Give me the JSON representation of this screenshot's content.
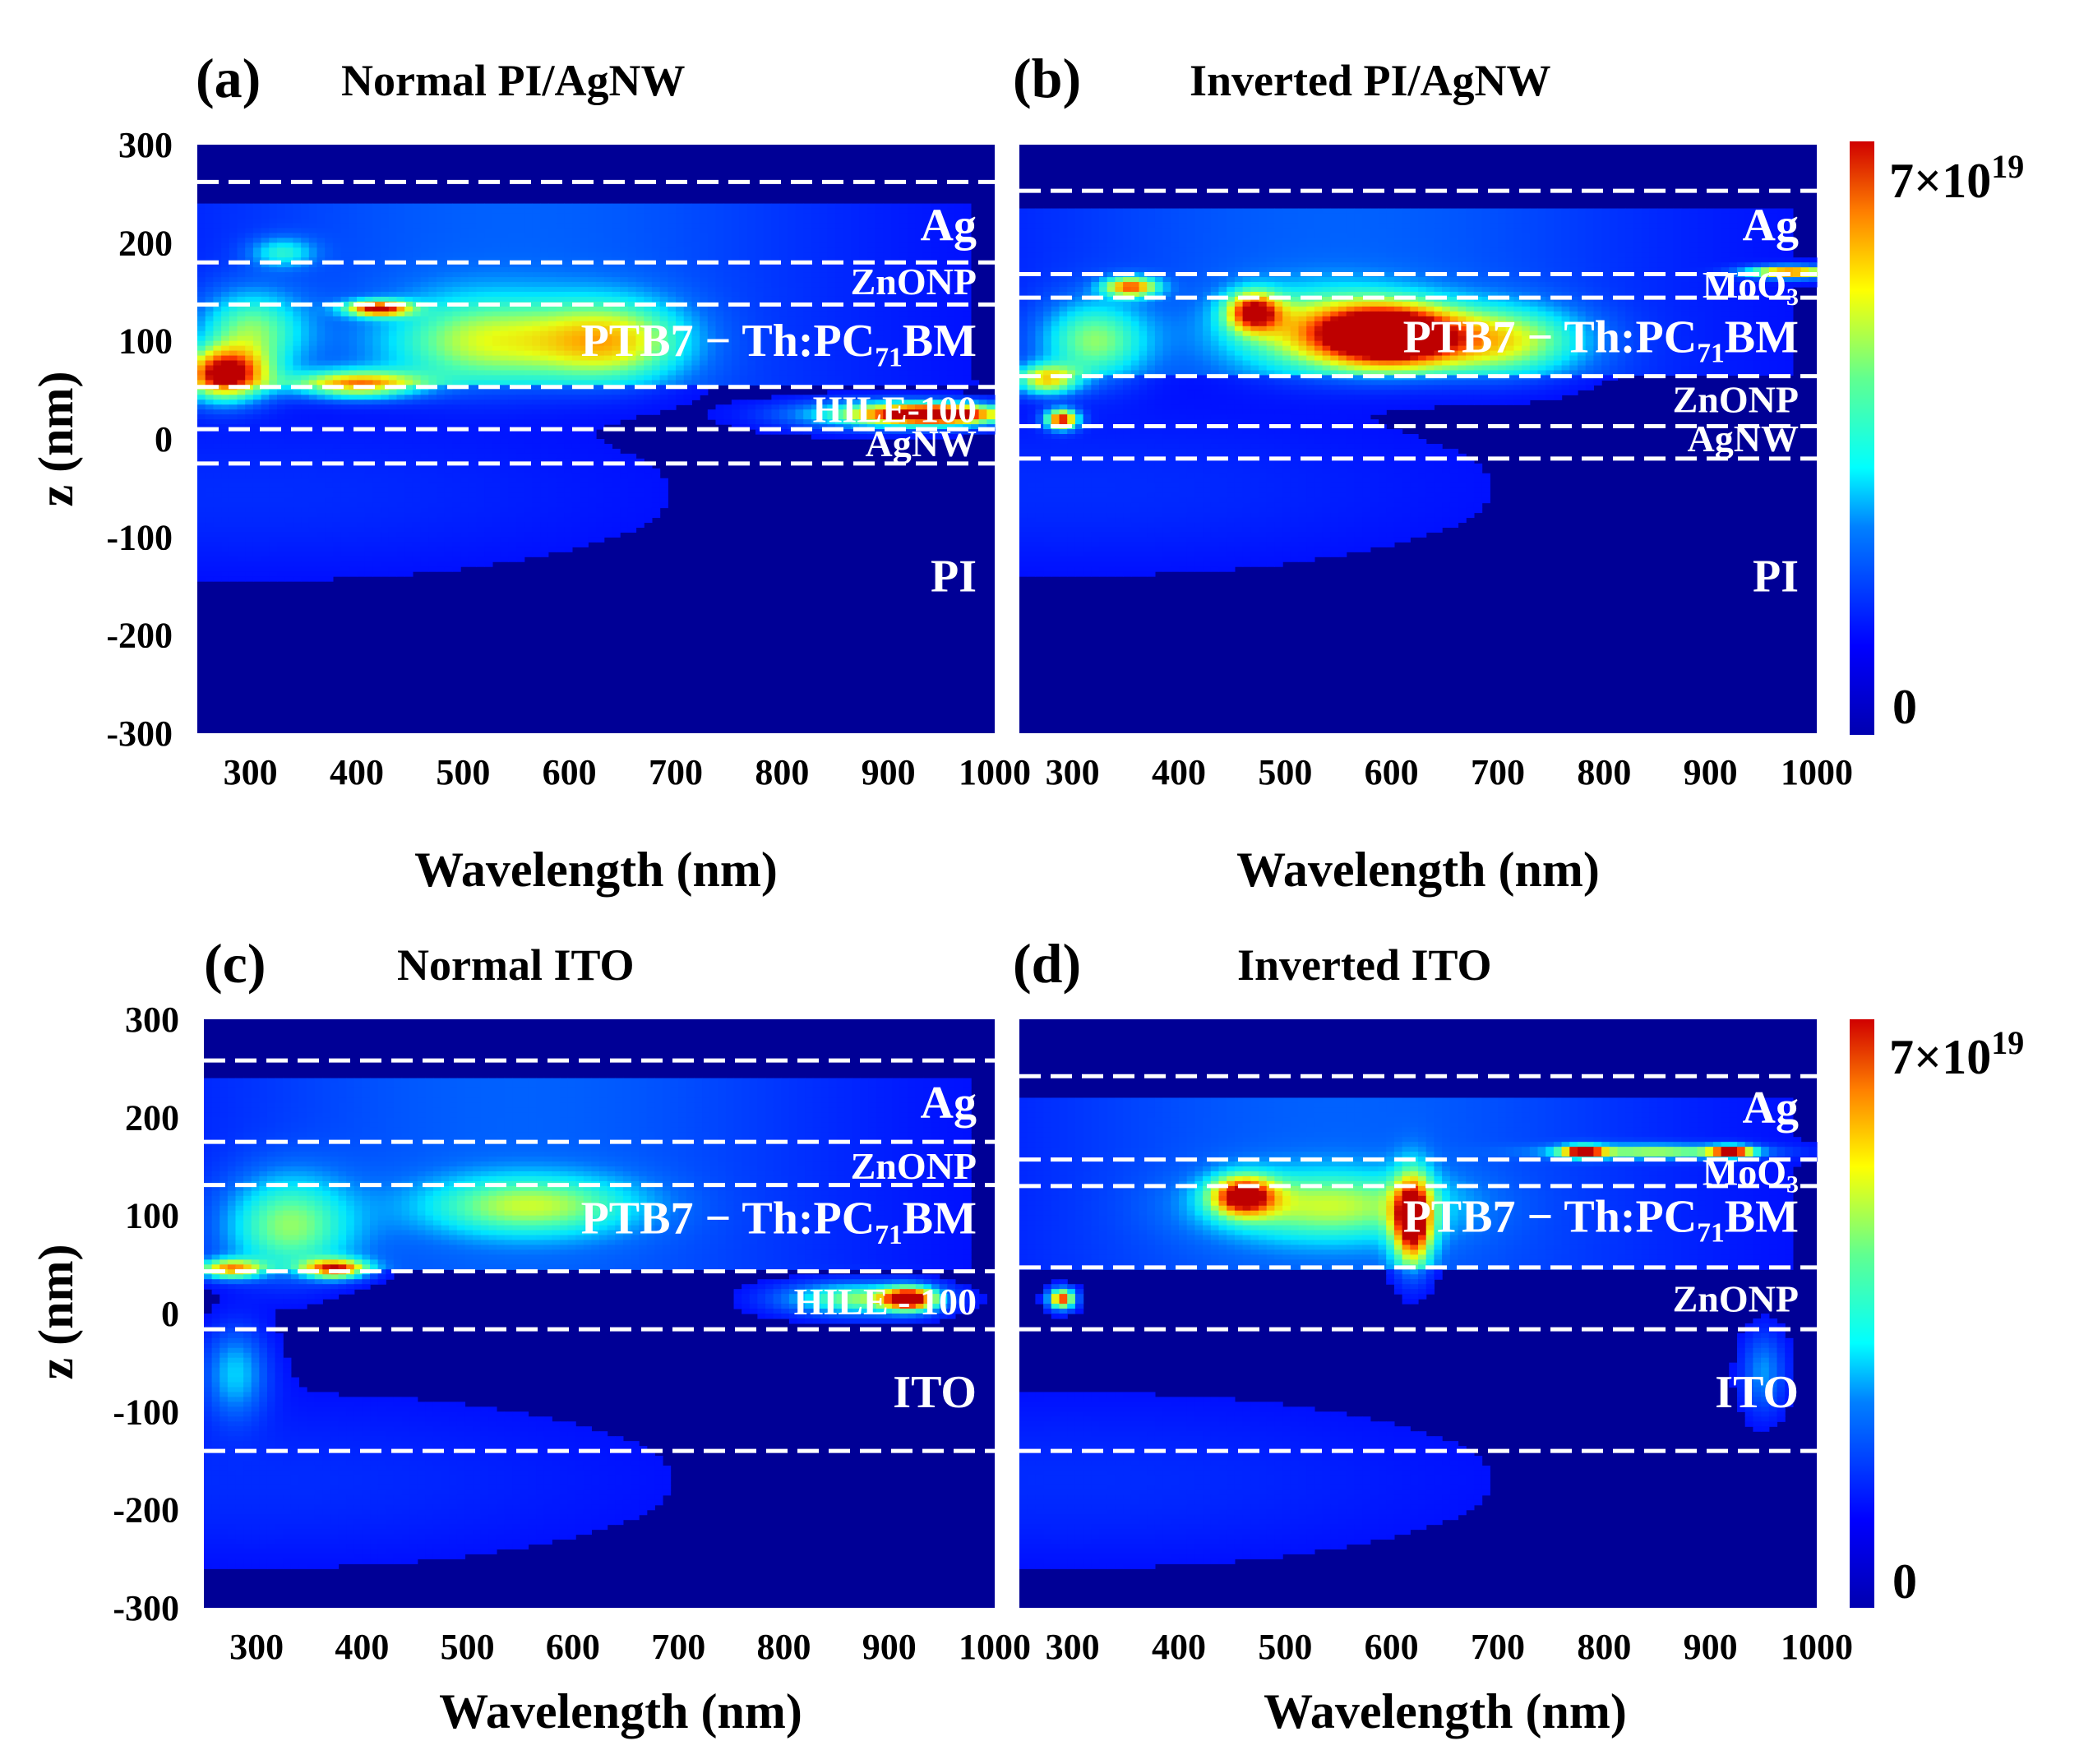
{
  "chart_data": [
    {
      "type": "heatmap",
      "panel_label": "(a)",
      "title": "Normal PI/AgNW",
      "xlabel": "Wavelength (nm)",
      "ylabel": "z (nm)",
      "xlim": [
        250,
        1000
      ],
      "ylim": [
        -300,
        300
      ],
      "xticks": [
        "300",
        "400",
        "500",
        "600",
        "700",
        "800",
        "900",
        "1000"
      ],
      "yticks": [
        "300",
        "200",
        "100",
        "0",
        "-100",
        "-200",
        "-300"
      ],
      "interfaces_nm": [
        262,
        180,
        137,
        53,
        10,
        -25
      ],
      "layers": [
        {
          "name": "Ag",
          "z": 218
        },
        {
          "name": "ZnONP",
          "z": 160
        },
        {
          "name": "PTB7 − Th:PC71BM",
          "z": 100
        },
        {
          "name": "HILE-100",
          "z": 30
        },
        {
          "name": "AgNW",
          "z": -5
        },
        {
          "name": "PI",
          "z": -140
        }
      ],
      "hotspots": [
        {
          "x": 275,
          "z": 65,
          "wx": 40,
          "wz": 26,
          "i": 0.95
        },
        {
          "x": 300,
          "z": 110,
          "wx": 50,
          "wz": 40,
          "i": 0.45
        },
        {
          "x": 420,
          "z": 133,
          "wx": 30,
          "wz": 8,
          "i": 0.85
        },
        {
          "x": 400,
          "z": 55,
          "wx": 60,
          "wz": 14,
          "i": 0.7
        },
        {
          "x": 520,
          "z": 100,
          "wx": 90,
          "wz": 45,
          "i": 0.45
        },
        {
          "x": 640,
          "z": 100,
          "wx": 70,
          "wz": 40,
          "i": 0.55
        },
        {
          "x": 950,
          "z": 25,
          "wx": 60,
          "wz": 10,
          "i": 0.95
        },
        {
          "x": 900,
          "z": 25,
          "wx": 90,
          "wz": 14,
          "i": 0.55
        },
        {
          "x": 330,
          "z": 190,
          "wx": 30,
          "wz": 15,
          "i": 0.3
        }
      ]
    },
    {
      "type": "heatmap",
      "panel_label": "(b)",
      "title": "Inverted PI/AgNW",
      "xlabel": "Wavelength (nm)",
      "ylabel": "",
      "xlim": [
        250,
        1000
      ],
      "ylim": [
        -300,
        300
      ],
      "xticks": [
        "300",
        "400",
        "500",
        "600",
        "700",
        "800",
        "900",
        "1000"
      ],
      "interfaces_nm": [
        253,
        168,
        144,
        64,
        13,
        -20
      ],
      "layers": [
        {
          "name": "Ag",
          "z": 218
        },
        {
          "name": "MoO3",
          "z": 157
        },
        {
          "name": "PTB7 − Th:PC71BM",
          "z": 104
        },
        {
          "name": "ZnONP",
          "z": 40
        },
        {
          "name": "AgNW",
          "z": 0
        },
        {
          "name": "PI",
          "z": -140
        }
      ],
      "hotspots": [
        {
          "x": 600,
          "z": 105,
          "wx": 60,
          "wz": 30,
          "i": 0.95
        },
        {
          "x": 540,
          "z": 110,
          "wx": 90,
          "wz": 40,
          "i": 0.55
        },
        {
          "x": 700,
          "z": 100,
          "wx": 80,
          "wz": 35,
          "i": 0.55
        },
        {
          "x": 470,
          "z": 130,
          "wx": 25,
          "wz": 20,
          "i": 0.75
        },
        {
          "x": 355,
          "z": 155,
          "wx": 25,
          "wz": 10,
          "i": 0.75
        },
        {
          "x": 290,
          "z": 20,
          "wx": 15,
          "wz": 10,
          "i": 0.95
        },
        {
          "x": 275,
          "z": 60,
          "wx": 30,
          "wz": 15,
          "i": 0.65
        },
        {
          "x": 320,
          "z": 100,
          "wx": 50,
          "wz": 40,
          "i": 0.45
        },
        {
          "x": 975,
          "z": 170,
          "wx": 40,
          "wz": 6,
          "i": 0.9
        }
      ]
    },
    {
      "type": "heatmap",
      "panel_label": "(c)",
      "title": "Normal ITO",
      "xlabel": "Wavelength (nm)",
      "ylabel": "z (nm)",
      "xlim": [
        250,
        1000
      ],
      "ylim": [
        -300,
        300
      ],
      "xticks": [
        "300",
        "400",
        "500",
        "600",
        "700",
        "800",
        "900",
        "1000"
      ],
      "yticks": [
        "300",
        "200",
        "100",
        "0",
        "-100",
        "-200",
        "-300"
      ],
      "interfaces_nm": [
        258,
        175,
        131,
        43,
        -16,
        -140
      ],
      "layers": [
        {
          "name": "Ag",
          "z": 215
        },
        {
          "name": "ZnONP",
          "z": 150
        },
        {
          "name": "PTB7 − Th:PC71BM",
          "z": 97
        },
        {
          "name": "HILE - 100",
          "z": 12
        },
        {
          "name": "ITO",
          "z": -80
        }
      ],
      "hotspots": [
        {
          "x": 275,
          "z": 45,
          "wx": 30,
          "wz": 10,
          "i": 0.7
        },
        {
          "x": 375,
          "z": 45,
          "wx": 30,
          "wz": 10,
          "i": 0.8
        },
        {
          "x": 330,
          "z": 90,
          "wx": 60,
          "wz": 50,
          "i": 0.45
        },
        {
          "x": 560,
          "z": 110,
          "wx": 100,
          "wz": 30,
          "i": 0.45
        },
        {
          "x": 920,
          "z": 15,
          "wx": 25,
          "wz": 12,
          "i": 0.95
        },
        {
          "x": 870,
          "z": 15,
          "wx": 70,
          "wz": 16,
          "i": 0.55
        },
        {
          "x": 280,
          "z": -60,
          "wx": 30,
          "wz": 45,
          "i": 0.3
        }
      ]
    },
    {
      "type": "heatmap",
      "panel_label": "(d)",
      "title": "Inverted ITO",
      "xlabel": "Wavelength (nm)",
      "ylabel": "",
      "xlim": [
        250,
        1000
      ],
      "ylim": [
        -300,
        300
      ],
      "xticks": [
        "300",
        "400",
        "500",
        "600",
        "700",
        "800",
        "900",
        "1000"
      ],
      "interfaces_nm": [
        242,
        157,
        130,
        47,
        -16,
        -140
      ],
      "layers": [
        {
          "name": "Ag",
          "z": 210
        },
        {
          "name": "MoO3",
          "z": 144
        },
        {
          "name": "PTB7 − Th:PC71BM",
          "z": 99
        },
        {
          "name": "ZnONP",
          "z": 15
        },
        {
          "name": "ITO",
          "z": -80
        }
      ],
      "hotspots": [
        {
          "x": 620,
          "z": 95,
          "wx": 18,
          "wz": 45,
          "i": 0.95
        },
        {
          "x": 460,
          "z": 120,
          "wx": 30,
          "wz": 20,
          "i": 0.8
        },
        {
          "x": 540,
          "z": 110,
          "wx": 110,
          "wz": 35,
          "i": 0.45
        },
        {
          "x": 290,
          "z": 15,
          "wx": 12,
          "wz": 10,
          "i": 0.95
        },
        {
          "x": 780,
          "z": 165,
          "wx": 20,
          "wz": 6,
          "i": 0.9
        },
        {
          "x": 920,
          "z": 165,
          "wx": 20,
          "wz": 6,
          "i": 0.9
        },
        {
          "x": 850,
          "z": 165,
          "wx": 90,
          "wz": 7,
          "i": 0.55
        },
        {
          "x": 950,
          "z": -60,
          "wx": 20,
          "wz": 40,
          "i": 0.25
        }
      ]
    }
  ],
  "colorbar": {
    "max_label": "7×10",
    "max_exp": "19",
    "min_label": "0"
  }
}
